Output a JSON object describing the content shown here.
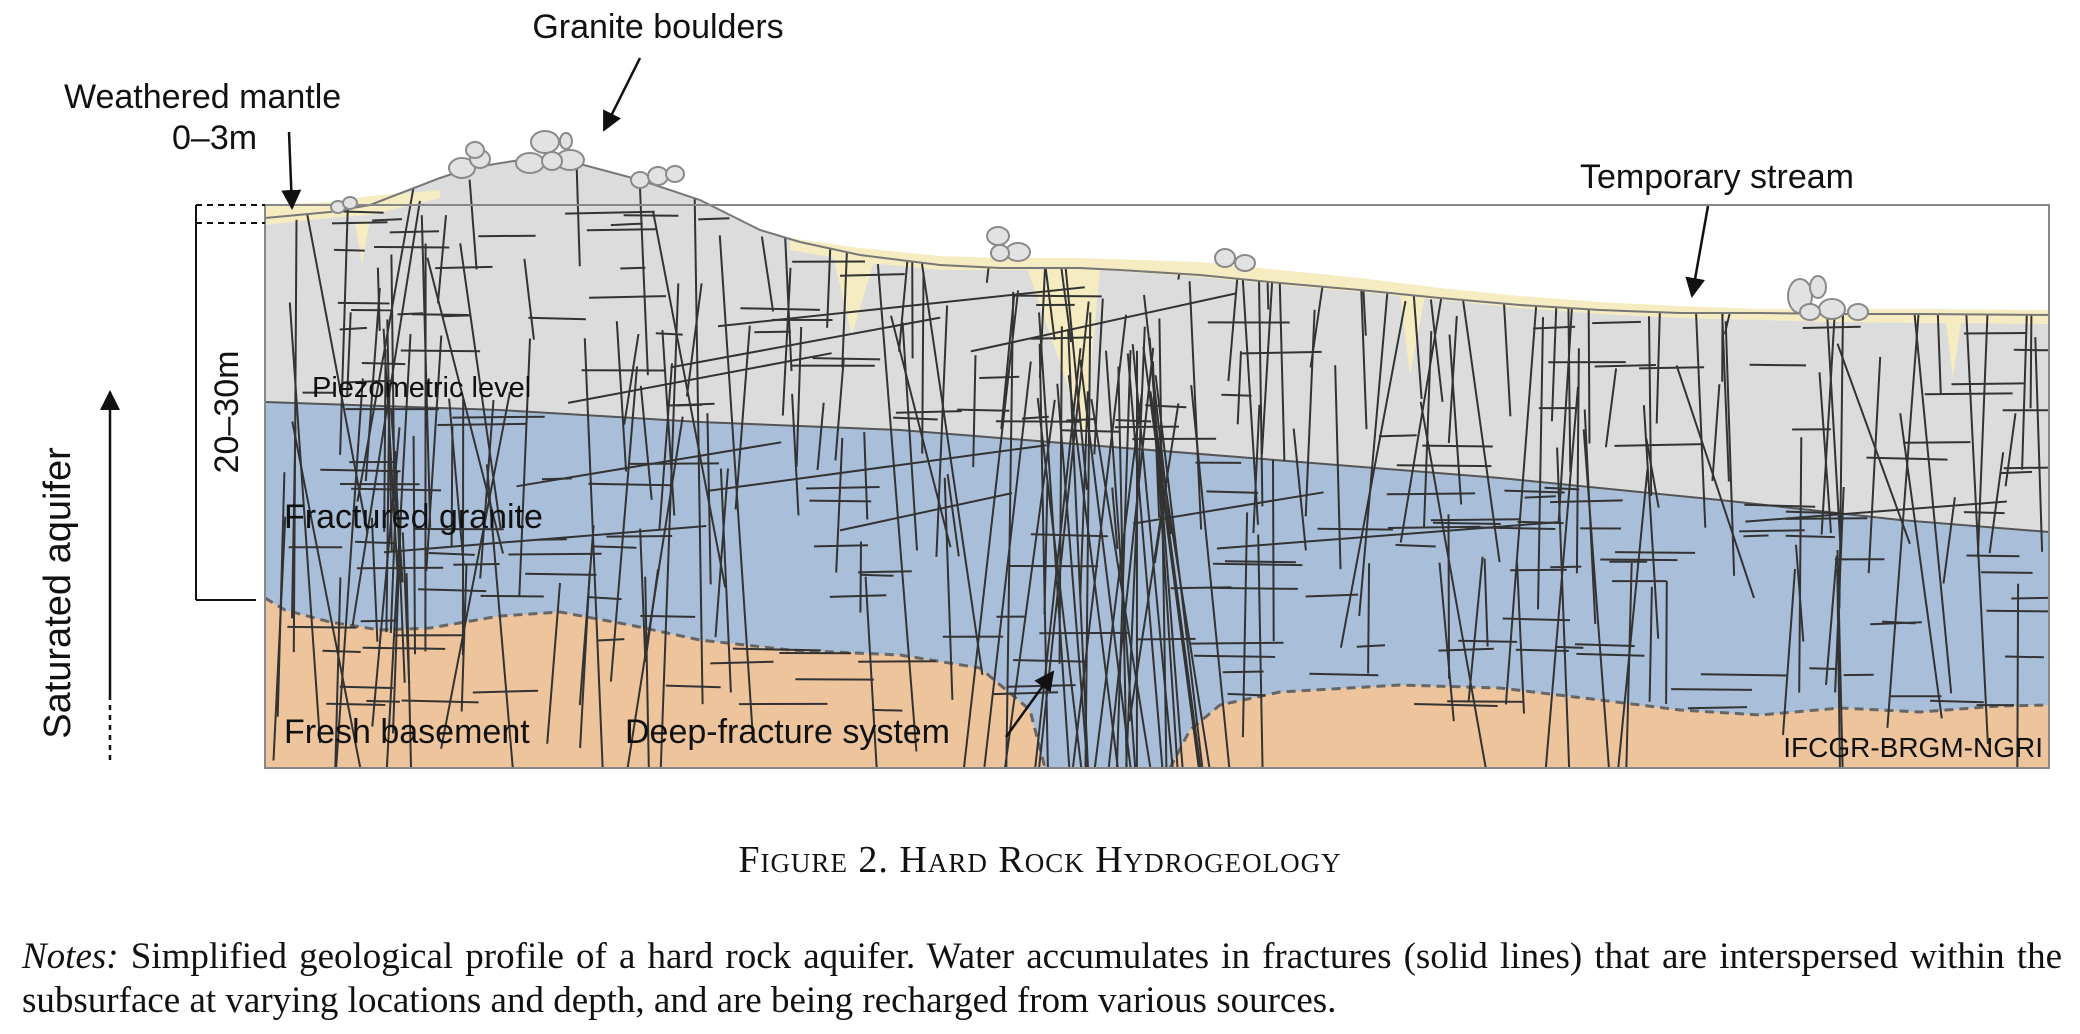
{
  "labels": {
    "granite_boulders": "Granite boulders",
    "weathered_mantle": "Weathered mantle",
    "weathered_mantle_depth": "0–3m",
    "temporary_stream": "Temporary stream",
    "piezometric_level": "Piezometric level",
    "depth_range": "20–30m",
    "fractured_granite": "Fractured granite",
    "saturated_aquifer": "Saturated aquifer",
    "fresh_basement": "Fresh basement",
    "deep_fracture_system": "Deep-fracture system",
    "credit": "IFCGR-BRGM-NGRI"
  },
  "caption": "Figure 2. Hard Rock Hydrogeology",
  "notes": {
    "label": "Notes:",
    "text": " Simplified geological profile of a hard rock aquifer. Water accumulates in fractures (solid lines) that are interspersed within the subsurface at varying locations and depth, and are being recharged from various sources."
  },
  "colors": {
    "weathered_mantle": "#f5ecc2",
    "unsaturated_granite": "#dcdcdc",
    "saturated_granite": "#a9bfd9",
    "fresh_basement": "#edc49c",
    "fracture_lines": "#333333"
  }
}
